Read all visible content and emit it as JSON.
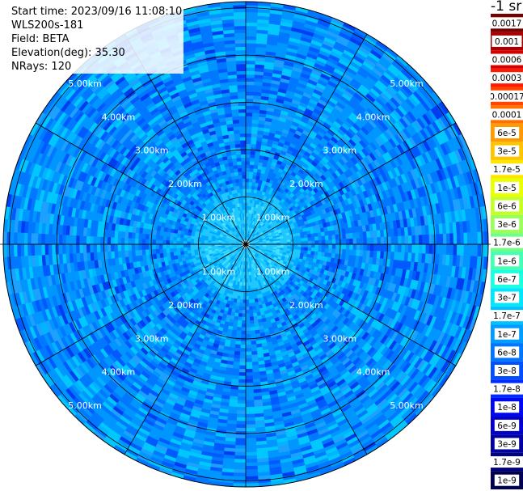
{
  "header": {
    "start_time": "Start time: 2023/09/16 11:08:10",
    "instrument": "WLS200s-181",
    "field": "Field: BETA",
    "elevation": "Elevation(deg): 35.30",
    "nrays": "NRays: 120"
  },
  "colorbar": {
    "unit_label": "-1 sr",
    "entries": [
      {
        "label": "0.0017",
        "color": "#7a0000"
      },
      {
        "label": "0.001",
        "color": "#a80000"
      },
      {
        "label": "0.0006",
        "color": "#d40000"
      },
      {
        "label": "0.0003",
        "color": "#ff1a00"
      },
      {
        "label": "0.00017",
        "color": "#ff4500"
      },
      {
        "label": "0.0001",
        "color": "#ff7000"
      },
      {
        "label": "6e-5",
        "color": "#ff9a00"
      },
      {
        "label": "3e-5",
        "color": "#ffc400"
      },
      {
        "label": "1.7e-5",
        "color": "#ffe600"
      },
      {
        "label": "1e-5",
        "color": "#eaff00"
      },
      {
        "label": "6e-6",
        "color": "#c4ff2a"
      },
      {
        "label": "3e-6",
        "color": "#9aff5a"
      },
      {
        "label": "1.7e-6",
        "color": "#70ff86"
      },
      {
        "label": "1e-6",
        "color": "#45ffb4"
      },
      {
        "label": "6e-7",
        "color": "#1affdf"
      },
      {
        "label": "3e-7",
        "color": "#00e6ff"
      },
      {
        "label": "1.7e-7",
        "color": "#00c2ff"
      },
      {
        "label": "1e-7",
        "color": "#009cff"
      },
      {
        "label": "6e-8",
        "color": "#0076ff"
      },
      {
        "label": "3e-8",
        "color": "#0050ff"
      },
      {
        "label": "1.7e-8",
        "color": "#002aff"
      },
      {
        "label": "1e-8",
        "color": "#0008f0"
      },
      {
        "label": "6e-9",
        "color": "#0000c8"
      },
      {
        "label": "3e-9",
        "color": "#0000a0"
      },
      {
        "label": "1.7e-9",
        "color": "#000078"
      },
      {
        "label": "1e-9",
        "color": "#000050"
      }
    ]
  },
  "chart_data": {
    "type": "heatmap",
    "projection": "polar",
    "rays": 120,
    "range_ring_labels": [
      "1.00km",
      "2.00km",
      "3.00km",
      "4.00km",
      "5.00km"
    ],
    "range_rings_km": [
      1,
      2,
      3,
      4,
      5
    ],
    "azimuth_spokes_deg": [
      0,
      30,
      60,
      90,
      120,
      150,
      180,
      210,
      240,
      270,
      300,
      330
    ],
    "typical_value_near_center": "3e-7",
    "typical_value_elsewhere": "6e-8",
    "palette": [
      "#00c8ff",
      "#0096ff",
      "#0078ff",
      "#005aff",
      "#003cf0",
      "#1ea0ff",
      "#00b4ff"
    ]
  }
}
